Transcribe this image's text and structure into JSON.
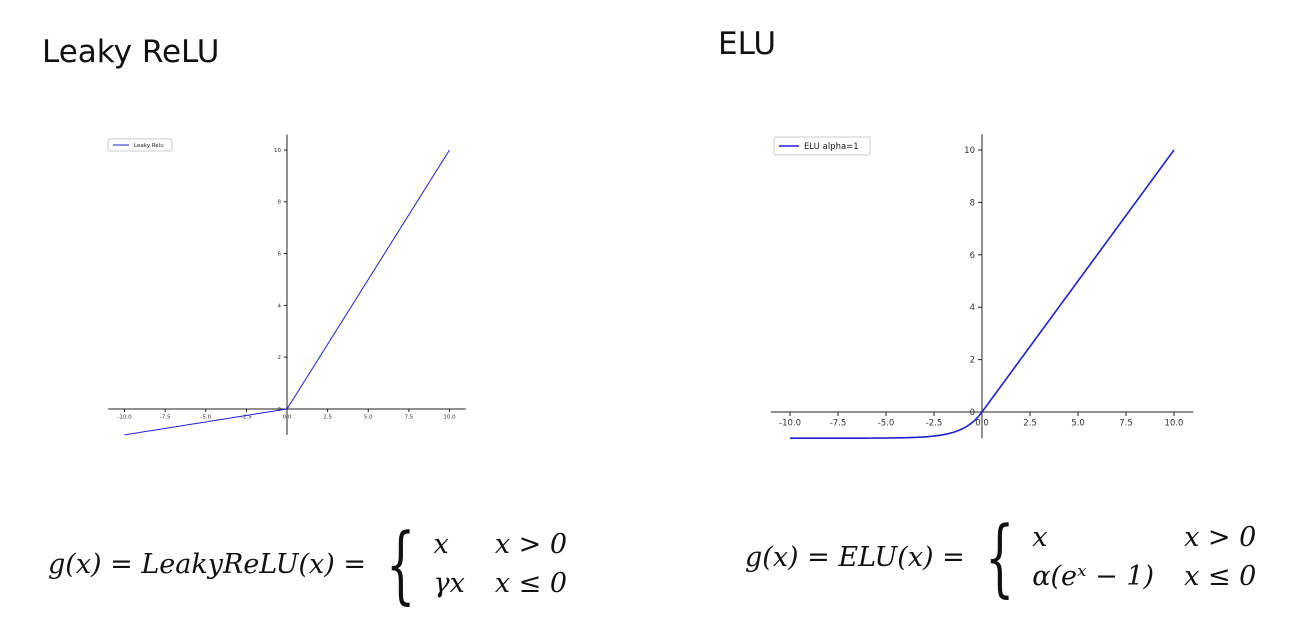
{
  "panels": {
    "left": {
      "title": "Leaky ReLU",
      "formula": {
        "lhs": "g(x) = LeakyReLU(x) =",
        "cases": [
          {
            "expr": "x",
            "cond": "x > 0"
          },
          {
            "expr": "γx",
            "cond": "x ≤ 0"
          }
        ]
      }
    },
    "right": {
      "title": "ELU",
      "formula": {
        "lhs": "g(x) = ELU(x) =",
        "cases": [
          {
            "expr": "x",
            "cond": "x > 0"
          },
          {
            "expr": "α(eˣ − 1)",
            "cond": "x ≤ 0"
          }
        ]
      }
    }
  },
  "chart_data": [
    {
      "type": "line",
      "function": "leaky_relu",
      "color": "#2020cc",
      "series": [
        {
          "name": "Leaky Relu",
          "x": [
            -10,
            -7.5,
            -5,
            -2.5,
            0,
            2.5,
            5,
            7.5,
            10
          ],
          "values": [
            -1,
            -0.75,
            -0.5,
            -0.25,
            0,
            2.5,
            5,
            7.5,
            10
          ]
        }
      ],
      "xlim": [
        -11,
        11
      ],
      "ylim": [
        -1.0,
        10.6
      ],
      "xticks": [
        "-10.0",
        "-7.5",
        "-5.0",
        "-2.5",
        "0.0",
        "2.5",
        "5.0",
        "7.5",
        "10.0"
      ],
      "yticks": [
        "0",
        "2",
        "4",
        "6",
        "8",
        "10"
      ],
      "xtick_values": [
        -10,
        -7.5,
        -5,
        -2.5,
        0,
        2.5,
        5,
        7.5,
        10
      ],
      "ytick_values": [
        0,
        2,
        4,
        6,
        8,
        10
      ],
      "grid": false,
      "legend_position": "top-left"
    },
    {
      "type": "line",
      "function": "elu",
      "color": "#2020cc",
      "series": [
        {
          "name": "ELU alpha=1",
          "x": [
            -10,
            -7.5,
            -5,
            -2.5,
            -1,
            0,
            2.5,
            5,
            7.5,
            10
          ],
          "values": [
            -1.0,
            -0.999,
            -0.993,
            -0.918,
            -0.632,
            0,
            2.5,
            5,
            7.5,
            10
          ]
        }
      ],
      "xlim": [
        -11,
        11
      ],
      "ylim": [
        -1.0,
        10.6
      ],
      "xticks": [
        "-10.0",
        "-7.5",
        "-5.0",
        "-2.5",
        "0.0",
        "2.5",
        "5.0",
        "7.5",
        "10.0"
      ],
      "yticks": [
        "0",
        "2",
        "4",
        "6",
        "8",
        "10"
      ],
      "xtick_values": [
        -10,
        -7.5,
        -5,
        -2.5,
        0,
        2.5,
        5,
        7.5,
        10
      ],
      "ytick_values": [
        0,
        2,
        4,
        6,
        8,
        10
      ],
      "grid": false,
      "legend_position": "top-left"
    }
  ]
}
